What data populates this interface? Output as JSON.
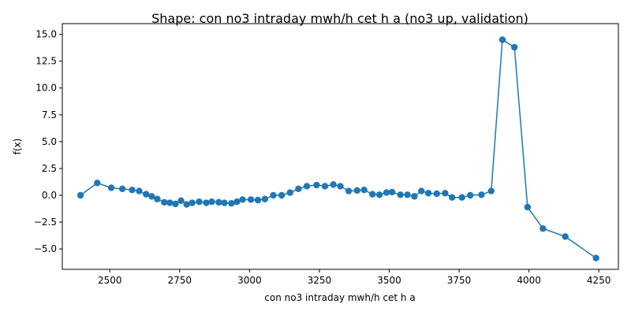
{
  "chart_data": {
    "type": "line",
    "title": "Shape: con no3 intraday mwh/h cet h a (no3 up, validation)",
    "xlabel": "con no3 intraday mwh/h cet h a",
    "ylabel": "f(x)",
    "xlim": [
      2330,
      4320
    ],
    "ylim": [
      -6.9,
      16.0
    ],
    "xticks": [
      2500,
      2750,
      3000,
      3250,
      3500,
      3750,
      4000,
      4250
    ],
    "xtick_labels": [
      "2500",
      "2750",
      "3000",
      "3250",
      "3500",
      "3750",
      "4000",
      "4250"
    ],
    "yticks": [
      -5.0,
      -2.5,
      0.0,
      2.5,
      5.0,
      7.5,
      10.0,
      12.5,
      15.0
    ],
    "ytick_labels": [
      "−5.0",
      "−2.5",
      "0.0",
      "2.5",
      "5.0",
      "7.5",
      "10.0",
      "12.5",
      "15.0"
    ],
    "grid": false,
    "color": "#1f77b4",
    "series": [
      {
        "marker": "circle",
        "x": [
          2395,
          2455,
          2505,
          2545,
          2580,
          2605,
          2630,
          2650,
          2670,
          2695,
          2715,
          2735,
          2755,
          2775,
          2795,
          2820,
          2845,
          2865,
          2890,
          2910,
          2935,
          2955,
          2975,
          3005,
          3030,
          3055,
          3085,
          3115,
          3145,
          3175,
          3205,
          3240,
          3270,
          3300,
          3325,
          3355,
          3385,
          3410,
          3440,
          3465,
          3490,
          3510,
          3540,
          3565,
          3590,
          3615,
          3640,
          3670,
          3700,
          3725,
          3760,
          3790,
          3830,
          3865,
          3905,
          3948,
          3995,
          4050,
          4130,
          4240
        ],
        "y": [
          0.0,
          1.15,
          0.7,
          0.6,
          0.5,
          0.4,
          0.1,
          -0.1,
          -0.35,
          -0.65,
          -0.7,
          -0.8,
          -0.5,
          -0.85,
          -0.7,
          -0.6,
          -0.7,
          -0.6,
          -0.65,
          -0.7,
          -0.75,
          -0.6,
          -0.4,
          -0.4,
          -0.45,
          -0.35,
          0.0,
          0.0,
          0.25,
          0.6,
          0.85,
          0.95,
          0.85,
          1.0,
          0.85,
          0.4,
          0.45,
          0.5,
          0.1,
          0.05,
          0.25,
          0.3,
          0.05,
          0.05,
          -0.1,
          0.4,
          0.2,
          0.15,
          0.2,
          -0.2,
          -0.2,
          0.0,
          0.05,
          0.4,
          14.5,
          13.8,
          -1.1,
          -3.1,
          -3.85,
          -5.85
        ]
      }
    ]
  }
}
